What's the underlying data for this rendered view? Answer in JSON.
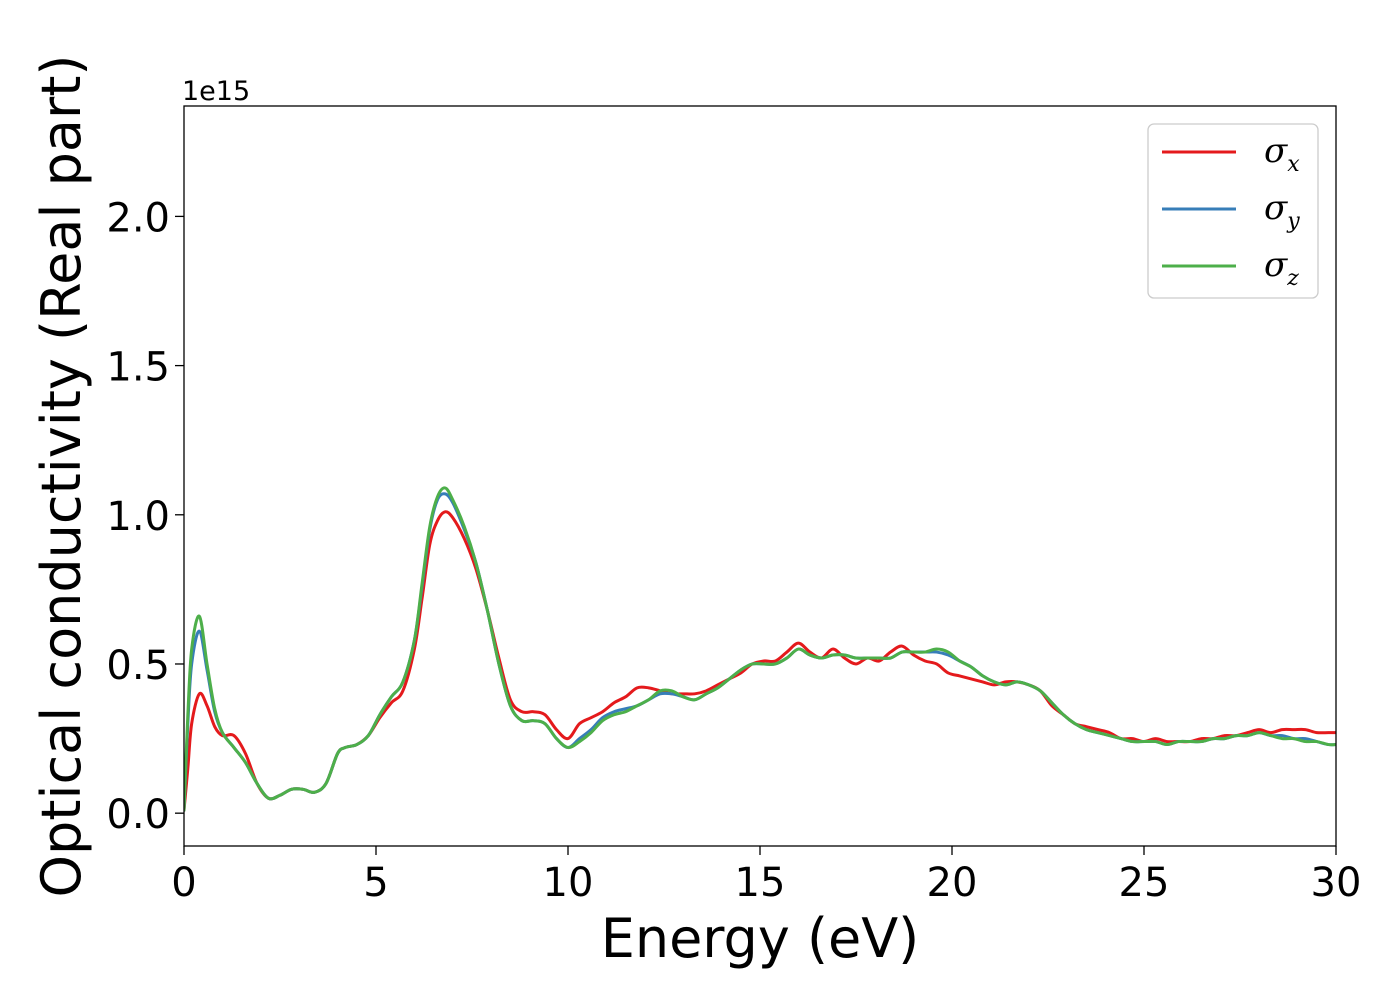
{
  "chart_data": {
    "type": "line",
    "title": "",
    "xlabel": "Energy (eV)",
    "ylabel": "Optical conductivity (Real part)",
    "y_offset_text": "1e15",
    "y_scale_factor": 1000000000000000.0,
    "xlim": [
      0,
      30
    ],
    "ylim": [
      -0.11,
      2.37
    ],
    "x_ticks": [
      0,
      5,
      10,
      15,
      20,
      25,
      30
    ],
    "x_tick_labels": [
      "0",
      "5",
      "10",
      "15",
      "20",
      "25",
      "30"
    ],
    "y_ticks": [
      0.0,
      0.5,
      1.0,
      1.5,
      2.0
    ],
    "y_tick_labels": [
      "0.0",
      "0.5",
      "1.0",
      "1.5",
      "2.0"
    ],
    "grid": false,
    "legend_position": "top-right",
    "x": [
      0,
      0.1,
      0.2,
      0.4,
      0.6,
      0.8,
      1.0,
      1.3,
      1.6,
      1.9,
      2.2,
      2.5,
      2.8,
      3.1,
      3.4,
      3.7,
      4.0,
      4.2,
      4.5,
      4.8,
      5.1,
      5.4,
      5.7,
      6.0,
      6.2,
      6.4,
      6.6,
      6.8,
      7.0,
      7.3,
      7.6,
      7.9,
      8.2,
      8.5,
      8.8,
      9.1,
      9.4,
      9.7,
      10.0,
      10.3,
      10.6,
      10.9,
      11.2,
      11.5,
      11.8,
      12.1,
      12.4,
      12.7,
      13.0,
      13.3,
      13.6,
      13.9,
      14.2,
      14.5,
      14.8,
      15.1,
      15.4,
      15.7,
      16.0,
      16.3,
      16.6,
      16.9,
      17.2,
      17.5,
      17.8,
      18.1,
      18.4,
      18.7,
      19.0,
      19.3,
      19.6,
      19.9,
      20.2,
      20.5,
      20.8,
      21.1,
      21.4,
      21.7,
      22.0,
      22.3,
      22.6,
      22.9,
      23.2,
      23.5,
      23.8,
      24.1,
      24.4,
      24.7,
      25.0,
      25.3,
      25.6,
      25.9,
      26.2,
      26.5,
      26.8,
      27.1,
      27.4,
      27.7,
      28.0,
      28.3,
      28.6,
      28.9,
      29.2,
      29.5,
      29.8,
      30.0
    ],
    "series": [
      {
        "name": "σx",
        "label_base": "σ",
        "label_sub": "x",
        "color": "#e41a1c",
        "values": [
          0.01,
          0.15,
          0.3,
          0.4,
          0.36,
          0.29,
          0.26,
          0.26,
          0.2,
          0.1,
          0.05,
          0.06,
          0.08,
          0.08,
          0.07,
          0.1,
          0.2,
          0.22,
          0.23,
          0.26,
          0.32,
          0.37,
          0.41,
          0.55,
          0.72,
          0.9,
          0.98,
          1.01,
          0.99,
          0.92,
          0.82,
          0.68,
          0.52,
          0.38,
          0.34,
          0.34,
          0.33,
          0.28,
          0.25,
          0.3,
          0.32,
          0.34,
          0.37,
          0.39,
          0.42,
          0.42,
          0.41,
          0.4,
          0.4,
          0.4,
          0.41,
          0.43,
          0.45,
          0.47,
          0.5,
          0.51,
          0.51,
          0.54,
          0.57,
          0.54,
          0.52,
          0.55,
          0.52,
          0.5,
          0.52,
          0.51,
          0.54,
          0.56,
          0.53,
          0.51,
          0.5,
          0.47,
          0.46,
          0.45,
          0.44,
          0.43,
          0.44,
          0.44,
          0.43,
          0.41,
          0.36,
          0.33,
          0.3,
          0.29,
          0.28,
          0.27,
          0.25,
          0.25,
          0.24,
          0.25,
          0.24,
          0.24,
          0.24,
          0.25,
          0.25,
          0.26,
          0.26,
          0.27,
          0.28,
          0.27,
          0.28,
          0.28,
          0.28,
          0.27,
          0.27,
          0.27
        ]
      },
      {
        "name": "σy",
        "label_base": "σ",
        "label_sub": "y",
        "color": "#377eb8",
        "values": [
          0.01,
          0.3,
          0.5,
          0.61,
          0.48,
          0.34,
          0.27,
          0.22,
          0.17,
          0.1,
          0.05,
          0.06,
          0.08,
          0.08,
          0.07,
          0.1,
          0.2,
          0.22,
          0.23,
          0.26,
          0.33,
          0.39,
          0.44,
          0.58,
          0.76,
          0.95,
          1.05,
          1.07,
          1.04,
          0.95,
          0.84,
          0.68,
          0.5,
          0.36,
          0.31,
          0.31,
          0.3,
          0.25,
          0.22,
          0.25,
          0.28,
          0.32,
          0.34,
          0.35,
          0.36,
          0.38,
          0.4,
          0.4,
          0.39,
          0.38,
          0.4,
          0.42,
          0.45,
          0.48,
          0.5,
          0.5,
          0.5,
          0.52,
          0.55,
          0.53,
          0.52,
          0.53,
          0.53,
          0.52,
          0.52,
          0.52,
          0.52,
          0.54,
          0.54,
          0.54,
          0.54,
          0.53,
          0.51,
          0.49,
          0.46,
          0.44,
          0.43,
          0.44,
          0.43,
          0.41,
          0.37,
          0.33,
          0.3,
          0.28,
          0.27,
          0.26,
          0.25,
          0.24,
          0.24,
          0.24,
          0.23,
          0.24,
          0.24,
          0.24,
          0.25,
          0.25,
          0.26,
          0.26,
          0.27,
          0.26,
          0.26,
          0.25,
          0.25,
          0.24,
          0.23,
          0.23
        ]
      },
      {
        "name": "σz",
        "label_base": "σ",
        "label_sub": "z",
        "color": "#4daf4a",
        "values": [
          0.01,
          0.33,
          0.55,
          0.66,
          0.5,
          0.35,
          0.27,
          0.22,
          0.17,
          0.1,
          0.05,
          0.06,
          0.08,
          0.08,
          0.07,
          0.1,
          0.2,
          0.22,
          0.23,
          0.26,
          0.33,
          0.39,
          0.44,
          0.58,
          0.77,
          0.96,
          1.06,
          1.09,
          1.05,
          0.96,
          0.84,
          0.68,
          0.5,
          0.36,
          0.31,
          0.31,
          0.3,
          0.25,
          0.22,
          0.24,
          0.27,
          0.31,
          0.33,
          0.34,
          0.36,
          0.38,
          0.41,
          0.41,
          0.39,
          0.38,
          0.4,
          0.42,
          0.45,
          0.48,
          0.5,
          0.5,
          0.5,
          0.52,
          0.55,
          0.53,
          0.52,
          0.53,
          0.53,
          0.52,
          0.52,
          0.52,
          0.52,
          0.54,
          0.54,
          0.54,
          0.55,
          0.54,
          0.51,
          0.49,
          0.46,
          0.44,
          0.43,
          0.44,
          0.43,
          0.41,
          0.37,
          0.33,
          0.3,
          0.28,
          0.27,
          0.26,
          0.25,
          0.24,
          0.24,
          0.24,
          0.23,
          0.24,
          0.24,
          0.24,
          0.25,
          0.25,
          0.26,
          0.26,
          0.27,
          0.26,
          0.25,
          0.25,
          0.24,
          0.24,
          0.23,
          0.23
        ]
      }
    ]
  }
}
